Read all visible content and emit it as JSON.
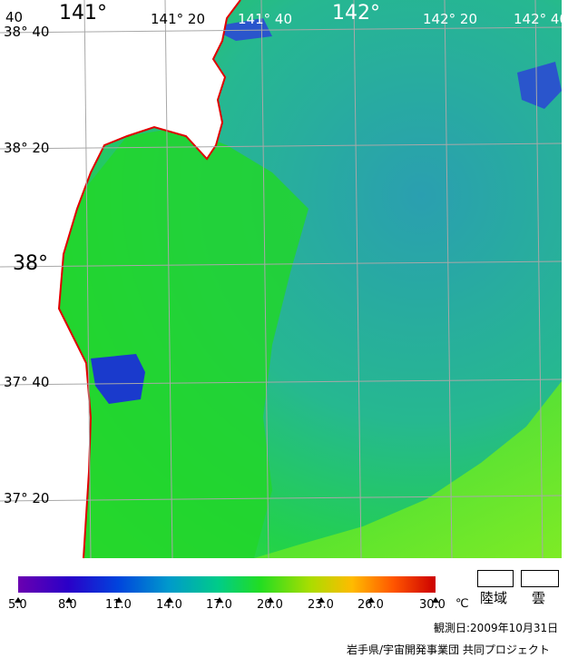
{
  "map": {
    "lon_labels": [
      "141°",
      "141° 20",
      "141° 40",
      "142°",
      "142° 20",
      "142° 40"
    ],
    "lat_labels": [
      "38° 40",
      "38° 20",
      "38°",
      "37° 40",
      "37° 20"
    ],
    "corner_label": "40",
    "colors": {
      "land": "#ffffff",
      "coast": "#e00000",
      "grid": "#b0b0b0",
      "sea_green": "#22d62a",
      "sea_cyan": "#2aa8a0",
      "sea_blue": "#2266cc",
      "sea_lime": "#66e622"
    }
  },
  "legend": {
    "ticks": [
      "5.0",
      "8.0",
      "11.0",
      "14.0",
      "17.0",
      "20.0",
      "23.0",
      "26.0",
      "30.0"
    ],
    "unit": "℃",
    "colors": [
      "#6a00b0",
      "#2a00c8",
      "#0044dd",
      "#0099cc",
      "#00cc88",
      "#22dd22",
      "#aadd00",
      "#ffbb00",
      "#ff5500",
      "#cc0000"
    ],
    "land_label": "陸域",
    "cloud_label": "雲"
  },
  "footer": {
    "date": "観測日:2009年10月31日",
    "credit": "岩手県/宇宙開発事業団 共同プロジェクト"
  }
}
